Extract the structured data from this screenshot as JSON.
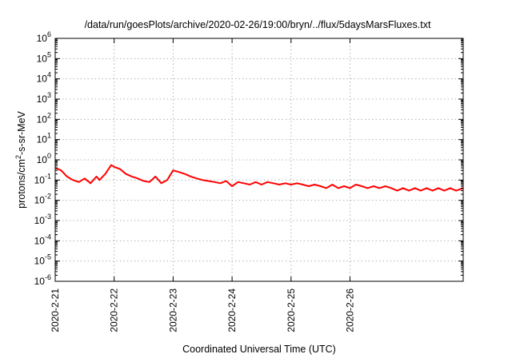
{
  "chart_data": {
    "type": "line",
    "title": "/data/run/goesPlots/archive/2020-02-26/19:00/bryn/../flux/5daysMarsFluxes.txt",
    "xlabel": "Coordinated Universal Time (UTC)",
    "ylabel": {
      "pre": "protons/cm",
      "sup": "2",
      "post": "-s-sr-MeV"
    },
    "y_scale": "log",
    "ylim": [
      1e-06,
      1000000.0
    ],
    "y_ticks": [
      {
        "value": 1e-06,
        "base": "10",
        "exp": "-6"
      },
      {
        "value": 1e-05,
        "base": "10",
        "exp": "-5"
      },
      {
        "value": 0.0001,
        "base": "10",
        "exp": "-4"
      },
      {
        "value": 0.001,
        "base": "10",
        "exp": "-3"
      },
      {
        "value": 0.01,
        "base": "10",
        "exp": "-2"
      },
      {
        "value": 0.1,
        "base": "10",
        "exp": "-1"
      },
      {
        "value": 1.0,
        "base": "10",
        "exp": "0"
      },
      {
        "value": 10.0,
        "base": "10",
        "exp": "1"
      },
      {
        "value": 100.0,
        "base": "10",
        "exp": "2"
      },
      {
        "value": 1000.0,
        "base": "10",
        "exp": "3"
      },
      {
        "value": 10000.0,
        "base": "10",
        "exp": "4"
      },
      {
        "value": 100000.0,
        "base": "10",
        "exp": "5"
      },
      {
        "value": 1000000.0,
        "base": "10",
        "exp": "6"
      }
    ],
    "xlim_days": [
      0,
      6.92
    ],
    "x_ticks": [
      {
        "day": 0,
        "label": "2020-2-21"
      },
      {
        "day": 1,
        "label": "2020-2-22"
      },
      {
        "day": 2,
        "label": "2020-2-23"
      },
      {
        "day": 3,
        "label": "2020-2-24"
      },
      {
        "day": 4,
        "label": "2020-2-25"
      },
      {
        "day": 5,
        "label": "2020-2-26"
      }
    ],
    "grid": true,
    "legend": "none",
    "series": [
      {
        "color": "#ff0000",
        "x": [
          0,
          0.1,
          0.2,
          0.3,
          0.4,
          0.5,
          0.6,
          0.7,
          0.75,
          0.85,
          0.95,
          1.0,
          1.1,
          1.2,
          1.3,
          1.4,
          1.5,
          1.6,
          1.7,
          1.8,
          1.9,
          2.0,
          2.1,
          2.2,
          2.3,
          2.4,
          2.5,
          2.6,
          2.7,
          2.8,
          2.9,
          3.0,
          3.1,
          3.2,
          3.3,
          3.4,
          3.5,
          3.6,
          3.7,
          3.8,
          3.9,
          4.0,
          4.1,
          4.2,
          4.3,
          4.4,
          4.5,
          4.6,
          4.7,
          4.8,
          4.9,
          5.0,
          5.1,
          5.2,
          5.3,
          5.4,
          5.5,
          5.6,
          5.7,
          5.8,
          5.9,
          6.0,
          6.1,
          6.2,
          6.3,
          6.4,
          6.5,
          6.6,
          6.7,
          6.8,
          6.92
        ],
        "values": [
          0.4,
          0.3,
          0.15,
          0.1,
          0.08,
          0.12,
          0.07,
          0.15,
          0.1,
          0.2,
          0.55,
          0.45,
          0.35,
          0.2,
          0.15,
          0.12,
          0.09,
          0.08,
          0.15,
          0.07,
          0.1,
          0.3,
          0.25,
          0.2,
          0.15,
          0.12,
          0.1,
          0.09,
          0.08,
          0.07,
          0.09,
          0.05,
          0.08,
          0.07,
          0.06,
          0.08,
          0.06,
          0.08,
          0.07,
          0.06,
          0.07,
          0.06,
          0.07,
          0.06,
          0.05,
          0.06,
          0.05,
          0.04,
          0.06,
          0.04,
          0.05,
          0.04,
          0.06,
          0.05,
          0.04,
          0.05,
          0.04,
          0.05,
          0.04,
          0.03,
          0.04,
          0.03,
          0.04,
          0.03,
          0.04,
          0.03,
          0.04,
          0.03,
          0.04,
          0.03,
          0.04
        ]
      }
    ]
  }
}
